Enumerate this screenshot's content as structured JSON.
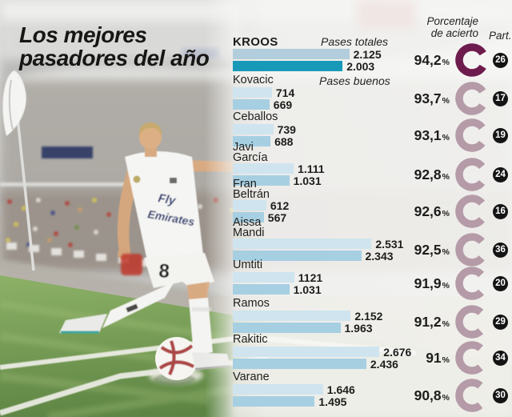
{
  "title": "Los mejores\npasadores del año",
  "legend": {
    "total": "Pases totales",
    "good": "Pases buenos"
  },
  "headers": {
    "accuracy": "Porcentaje\nde acierto",
    "appearances": "Part."
  },
  "percent_sign": "%",
  "photo": {
    "sponsor_line1": "Fly",
    "sponsor_line2": "Emirates",
    "shorts_number": "8"
  },
  "colors": {
    "ink": "#1d1d1b",
    "bar-total": "#cfe4ee",
    "bar-good": "#a6cfe2",
    "bar-total-hl": "#b2cddb",
    "bar-good-hl": "#1899b8",
    "donut": "#b59ba7",
    "donut-hl": "#6e1b4d",
    "badge": "#141414"
  },
  "rows": [
    {
      "name": "KROOS",
      "total": 2125,
      "total_label": "2.125",
      "good": 2003,
      "good_label": "2.003",
      "pct": 94.2,
      "pct_label": "94,2",
      "part": "26"
    },
    {
      "name": "Kovacic",
      "total": 714,
      "total_label": "714",
      "good": 669,
      "good_label": "669",
      "pct": 93.7,
      "pct_label": "93,7",
      "part": "17"
    },
    {
      "name": "Ceballos",
      "total": 739,
      "total_label": "739",
      "good": 688,
      "good_label": "688",
      "pct": 93.1,
      "pct_label": "93,1",
      "part": "19"
    },
    {
      "name": "Javi\nGarcía",
      "total": 1111,
      "total_label": "1.111",
      "good": 1031,
      "good_label": "1.031",
      "pct": 92.8,
      "pct_label": "92,8",
      "part": "24"
    },
    {
      "name": "Fran\nBeltrán",
      "total": 612,
      "total_label": "612",
      "good": 567,
      "good_label": "567",
      "pct": 92.6,
      "pct_label": "92,6",
      "part": "16"
    },
    {
      "name": "Aissa\nMandi",
      "total": 2531,
      "total_label": "2.531",
      "good": 2343,
      "good_label": "2.343",
      "pct": 92.5,
      "pct_label": "92,5",
      "part": "36"
    },
    {
      "name": "Umtiti",
      "total": 1121,
      "total_label": "1121",
      "good": 1031,
      "good_label": "1.031",
      "pct": 91.9,
      "pct_label": "91,9",
      "part": "20"
    },
    {
      "name": "Ramos",
      "total": 2152,
      "total_label": "2.152",
      "good": 1963,
      "good_label": "1.963",
      "pct": 91.2,
      "pct_label": "91,2",
      "part": "29"
    },
    {
      "name": "Rakitic",
      "total": 2676,
      "total_label": "2.676",
      "good": 2436,
      "good_label": "2.436",
      "pct": 91.0,
      "pct_label": "91",
      "part": "34"
    },
    {
      "name": "Varane",
      "total": 1646,
      "total_label": "1.646",
      "good": 1495,
      "good_label": "1.495",
      "pct": 90.8,
      "pct_label": "90,8",
      "part": "30"
    }
  ],
  "chart_data": {
    "type": "bar",
    "orientation": "horizontal",
    "title": "Los mejores pasadores del año",
    "categories": [
      "Kroos",
      "Kovacic",
      "Ceballos",
      "Javi García",
      "Fran Beltrán",
      "Aissa Mandi",
      "Umtiti",
      "Ramos",
      "Rakitic",
      "Varane"
    ],
    "series": [
      {
        "name": "Pases totales",
        "values": [
          2125,
          714,
          739,
          1111,
          612,
          2531,
          1121,
          2152,
          2676,
          1646
        ]
      },
      {
        "name": "Pases buenos",
        "values": [
          2003,
          669,
          688,
          1031,
          567,
          2343,
          1031,
          1963,
          2436,
          1495
        ]
      }
    ],
    "accuracy_pct": [
      94.2,
      93.7,
      93.1,
      92.8,
      92.6,
      92.5,
      91.9,
      91.2,
      91.0,
      90.8
    ],
    "appearances": [
      26,
      17,
      19,
      24,
      16,
      36,
      20,
      29,
      34,
      30
    ],
    "value_labels_shown": true,
    "grid": false,
    "legend_position": "inline-top",
    "highlighted_category": "Kroos"
  }
}
